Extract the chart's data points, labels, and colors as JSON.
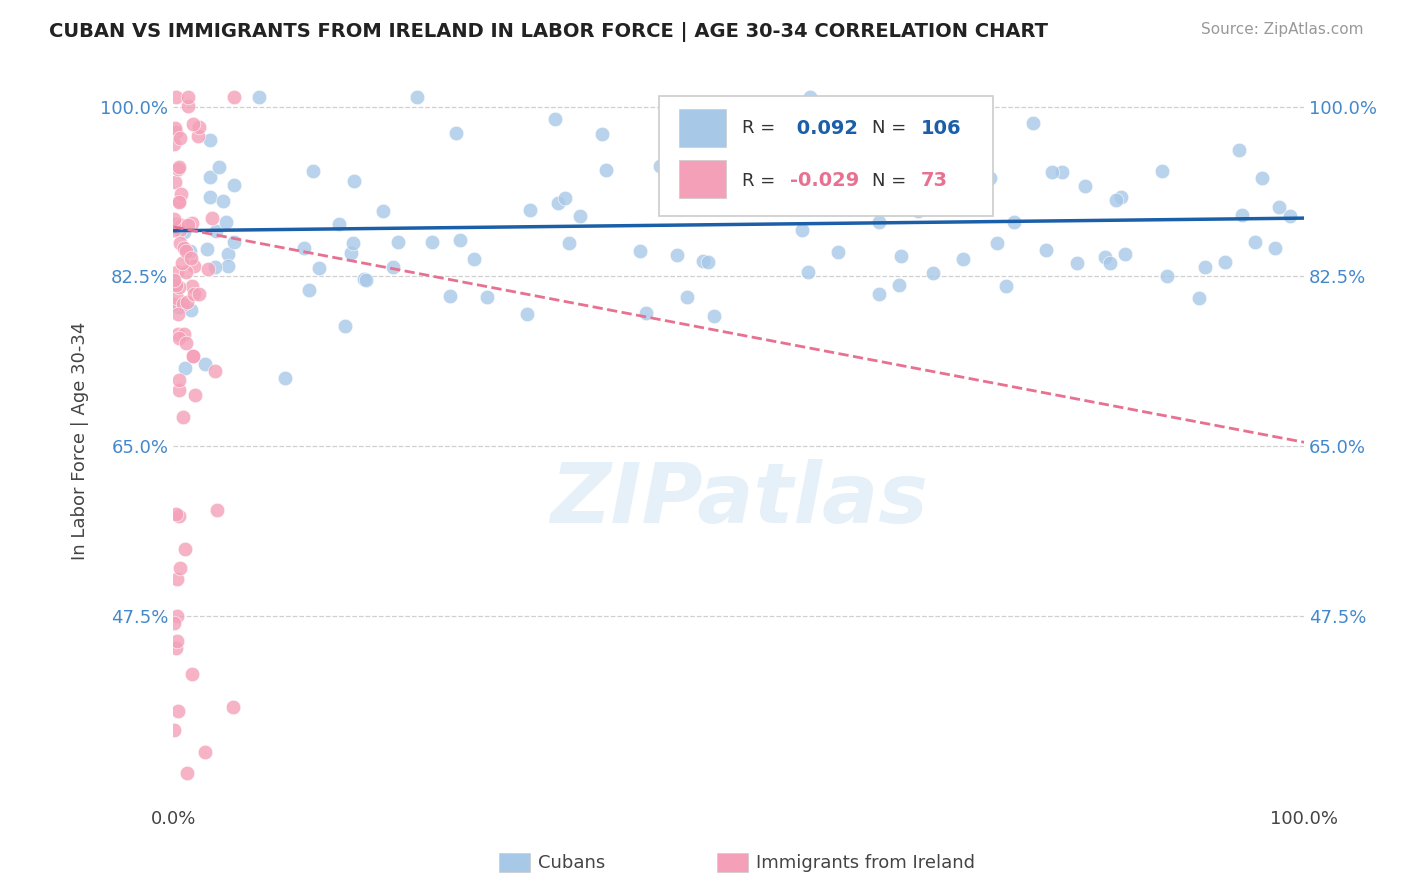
{
  "title": "CUBAN VS IMMIGRANTS FROM IRELAND IN LABOR FORCE | AGE 30-34 CORRELATION CHART",
  "source_text": "Source: ZipAtlas.com",
  "ylabel": "In Labor Force | Age 30-34",
  "xlim": [
    0.0,
    1.0
  ],
  "ylim": [
    0.28,
    1.03
  ],
  "yticks": [
    0.475,
    0.65,
    0.825,
    1.0
  ],
  "ytick_labels": [
    "47.5%",
    "65.0%",
    "82.5%",
    "100.0%"
  ],
  "blue_R": 0.092,
  "blue_N": 106,
  "pink_R": -0.029,
  "pink_N": 73,
  "blue_color": "#a8c8e8",
  "pink_color": "#f4a0b8",
  "blue_line_color": "#1a5fa8",
  "pink_line_color": "#e87090",
  "legend_blue_label": "Cubans",
  "legend_pink_label": "Immigrants from Ireland",
  "background_color": "#ffffff",
  "grid_color": "#d0d0d0",
  "axis_label_color": "#444444",
  "tick_label_color_y": "#4488cc",
  "title_color": "#222222",
  "source_color": "#999999",
  "blue_line_y_at_0": 0.872,
  "blue_line_y_at_1": 0.885,
  "pink_line_y_at_0": 0.876,
  "pink_line_y_at_1": 0.654
}
